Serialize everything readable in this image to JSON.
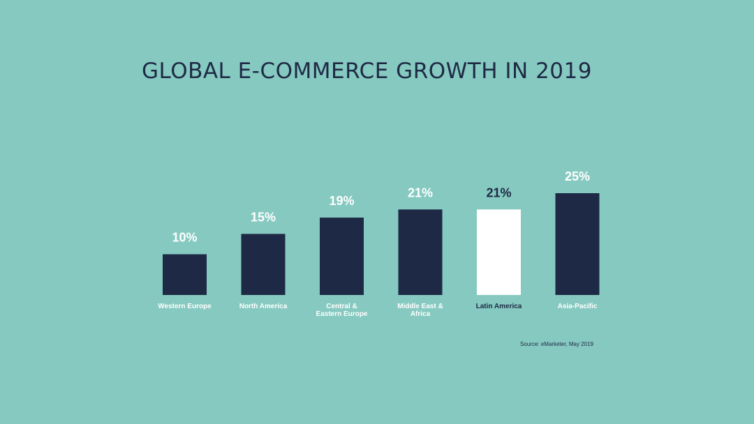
{
  "colors": {
    "background": "#86c9c0",
    "bar": "#1e2a45",
    "highlight_bar": "#ffffff",
    "label_light": "#ffffff",
    "label_dark": "#1e2a45"
  },
  "chart_data": {
    "type": "bar",
    "title": "GLOBAL E-COMMERCE GROWTH IN 2019",
    "xlabel": "",
    "ylabel": "",
    "categories": [
      [
        "Western Europe"
      ],
      [
        "North America"
      ],
      [
        "Central &",
        "Eastern Europe"
      ],
      [
        "Middle East &",
        "Africa"
      ],
      [
        "Latin America"
      ],
      [
        "Asia-Pacific"
      ]
    ],
    "values": [
      10,
      15,
      19,
      21,
      21,
      25
    ],
    "value_labels": [
      "10%",
      "15%",
      "19%",
      "21%",
      "21%",
      "25%"
    ],
    "highlight_index": 4,
    "ylim": [
      0,
      25
    ],
    "grid": false,
    "source": "Source: eMarketer, May 2019"
  }
}
